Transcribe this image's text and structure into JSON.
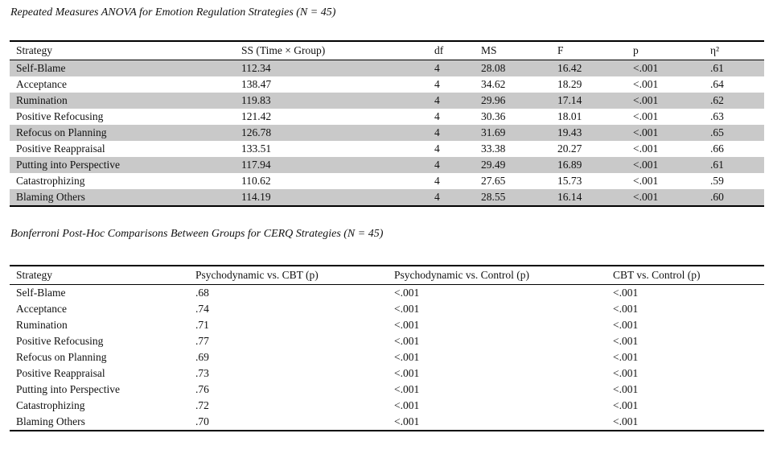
{
  "page": {
    "background_color": "#ffffff",
    "shade_color": "#c9c9c9",
    "text_color": "#111111"
  },
  "table1": {
    "title": "Repeated Measures ANOVA for Emotion Regulation Strategies (N = 45)",
    "columns": [
      "Strategy",
      "SS (Time × Group)",
      "df",
      "MS",
      "F",
      "p",
      "η²"
    ],
    "shaded_rows": [
      0,
      2,
      4,
      6,
      8
    ],
    "rows": [
      [
        "Self-Blame",
        "112.34",
        "4",
        "28.08",
        "16.42",
        "<.001",
        ".61"
      ],
      [
        "Acceptance",
        "138.47",
        "4",
        "34.62",
        "18.29",
        "<.001",
        ".64"
      ],
      [
        "Rumination",
        "119.83",
        "4",
        "29.96",
        "17.14",
        "<.001",
        ".62"
      ],
      [
        "Positive Refocusing",
        "121.42",
        "4",
        "30.36",
        "18.01",
        "<.001",
        ".63"
      ],
      [
        "Refocus on Planning",
        "126.78",
        "4",
        "31.69",
        "19.43",
        "<.001",
        ".65"
      ],
      [
        "Positive Reappraisal",
        "133.51",
        "4",
        "33.38",
        "20.27",
        "<.001",
        ".66"
      ],
      [
        "Putting into Perspective",
        "117.94",
        "4",
        "29.49",
        "16.89",
        "<.001",
        ".61"
      ],
      [
        "Catastrophizing",
        "110.62",
        "4",
        "27.65",
        "15.73",
        "<.001",
        ".59"
      ],
      [
        "Blaming Others",
        "114.19",
        "4",
        "28.55",
        "16.14",
        "<.001",
        ".60"
      ]
    ]
  },
  "table2": {
    "title": "Bonferroni Post-Hoc Comparisons Between Groups for CERQ Strategies (N = 45)",
    "columns": [
      "Strategy",
      "Psychodynamic vs. CBT (p)",
      "Psychodynamic vs. Control (p)",
      "CBT vs. Control (p)"
    ],
    "shaded_rows": [],
    "rows": [
      [
        "Self-Blame",
        ".68",
        "<.001",
        "<.001"
      ],
      [
        "Acceptance",
        ".74",
        "<.001",
        "<.001"
      ],
      [
        "Rumination",
        ".71",
        "<.001",
        "<.001"
      ],
      [
        "Positive Refocusing",
        ".77",
        "<.001",
        "<.001"
      ],
      [
        "Refocus on Planning",
        ".69",
        "<.001",
        "<.001"
      ],
      [
        "Positive Reappraisal",
        ".73",
        "<.001",
        "<.001"
      ],
      [
        "Putting into Perspective",
        ".76",
        "<.001",
        "<.001"
      ],
      [
        "Catastrophizing",
        ".72",
        "<.001",
        "<.001"
      ],
      [
        "Blaming Others",
        ".70",
        "<.001",
        "<.001"
      ]
    ]
  }
}
